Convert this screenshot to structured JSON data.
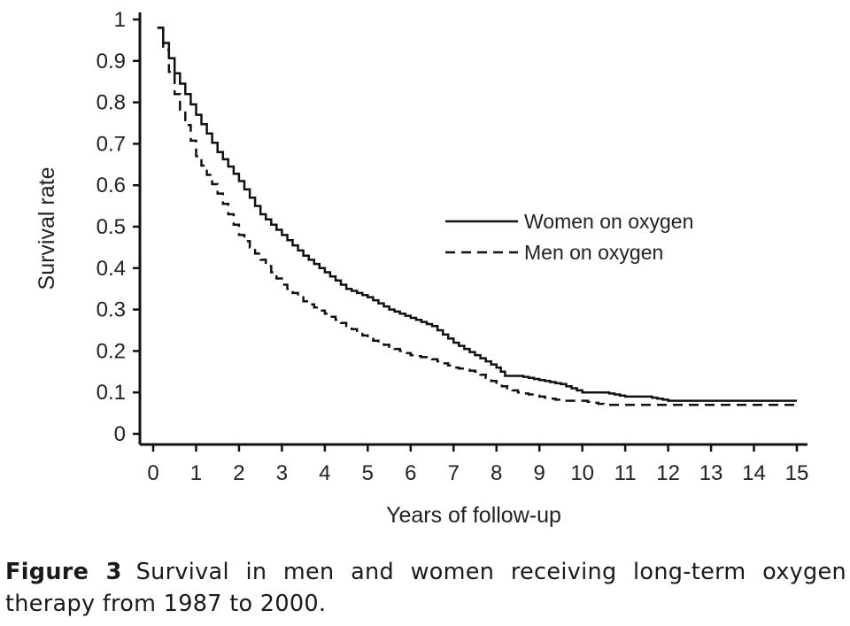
{
  "chart_data": {
    "type": "line",
    "xlabel": "Years of follow-up",
    "ylabel": "Survival rate",
    "xlim": [
      0,
      15
    ],
    "ylim": [
      0,
      1
    ],
    "xticks": [
      "0",
      "1",
      "2",
      "3",
      "4",
      "5",
      "6",
      "7",
      "8",
      "9",
      "10",
      "11",
      "12",
      "13",
      "14",
      "15"
    ],
    "yticks": [
      "0",
      "0.1",
      "0.2",
      "0.3",
      "0.4",
      "0.5",
      "0.6",
      "0.7",
      "0.8",
      "0.9",
      "1"
    ],
    "grid": false,
    "legend": "right",
    "series": [
      {
        "name": "Women on oxygen",
        "style": "solid",
        "x": [
          0.1,
          0.5,
          1.0,
          1.5,
          2.0,
          2.5,
          3.0,
          3.5,
          4.0,
          4.5,
          5.0,
          5.5,
          6.0,
          6.5,
          7.0,
          7.5,
          8.0,
          8.2,
          8.5,
          9.0,
          9.5,
          10.0,
          10.5,
          11.0,
          11.5,
          12.0,
          13.0,
          14.0,
          15.0
        ],
        "y": [
          0.98,
          0.87,
          0.77,
          0.68,
          0.61,
          0.53,
          0.48,
          0.43,
          0.39,
          0.35,
          0.33,
          0.3,
          0.28,
          0.26,
          0.22,
          0.19,
          0.16,
          0.14,
          0.14,
          0.13,
          0.12,
          0.1,
          0.1,
          0.09,
          0.09,
          0.08,
          0.08,
          0.08,
          0.08
        ]
      },
      {
        "name": "Men on oxygen",
        "style": "dashed",
        "x": [
          0.1,
          0.5,
          1.0,
          1.5,
          2.0,
          2.5,
          3.0,
          3.5,
          4.0,
          4.5,
          5.0,
          5.5,
          6.0,
          6.5,
          7.0,
          7.5,
          8.0,
          8.5,
          9.0,
          9.5,
          10.0,
          10.5,
          11.0,
          12.0,
          13.0,
          14.0,
          15.0
        ],
        "y": [
          0.98,
          0.82,
          0.67,
          0.58,
          0.48,
          0.42,
          0.36,
          0.32,
          0.29,
          0.26,
          0.23,
          0.21,
          0.19,
          0.18,
          0.16,
          0.15,
          0.12,
          0.1,
          0.09,
          0.08,
          0.08,
          0.07,
          0.07,
          0.07,
          0.07,
          0.07,
          0.07
        ]
      }
    ]
  },
  "caption": {
    "label": "Figure 3",
    "text": "Survival in men and women receiving long-term oxygen therapy from 1987 to 2000."
  }
}
